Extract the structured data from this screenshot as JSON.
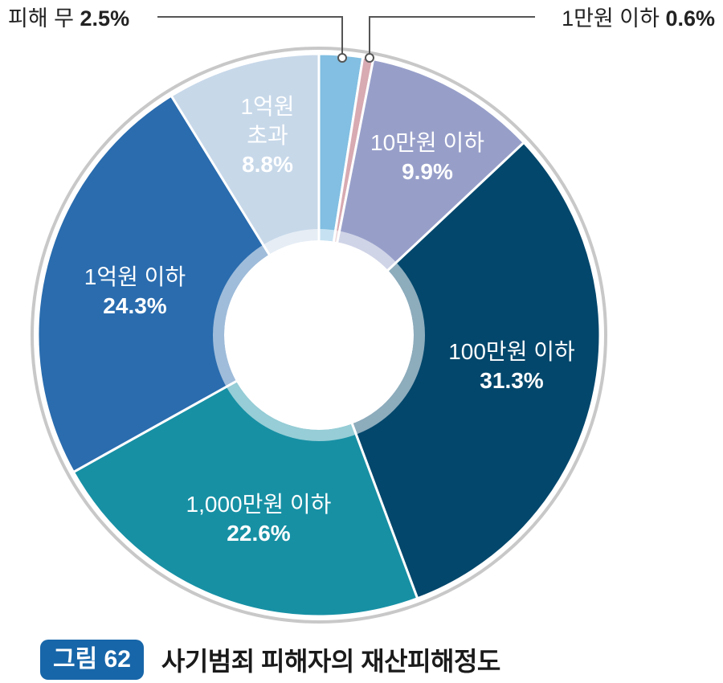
{
  "chart_data": {
    "type": "pie",
    "variant": "donut",
    "title": "사기범죄 피해자의 재산피해정도",
    "figure_label": "그림 62",
    "slices": [
      {
        "label": "피해 무",
        "value": 2.5,
        "value_label": "2.5%",
        "color": "#82bfe2",
        "callout": true
      },
      {
        "label": "1만원 이하",
        "value": 0.6,
        "value_label": "0.6%",
        "color": "#d8aab2",
        "callout": true
      },
      {
        "label": "10만원 이하",
        "value": 9.9,
        "value_label": "9.9%",
        "color": "#979fc9"
      },
      {
        "label": "100만원 이하",
        "value": 31.3,
        "value_label": "31.3%",
        "color": "#03476c"
      },
      {
        "label": "1,000만원 이하",
        "value": 22.6,
        "value_label": "22.6%",
        "color": "#1790a4"
      },
      {
        "label": "1억원 이하",
        "value": 24.3,
        "value_label": "24.3%",
        "color": "#2a6cae"
      },
      {
        "label": "1억원 초과",
        "value": 8.8,
        "value_label": "8.8%",
        "color": "#c7d8e9",
        "label_lines": [
          "1억원",
          "초과"
        ]
      }
    ]
  }
}
